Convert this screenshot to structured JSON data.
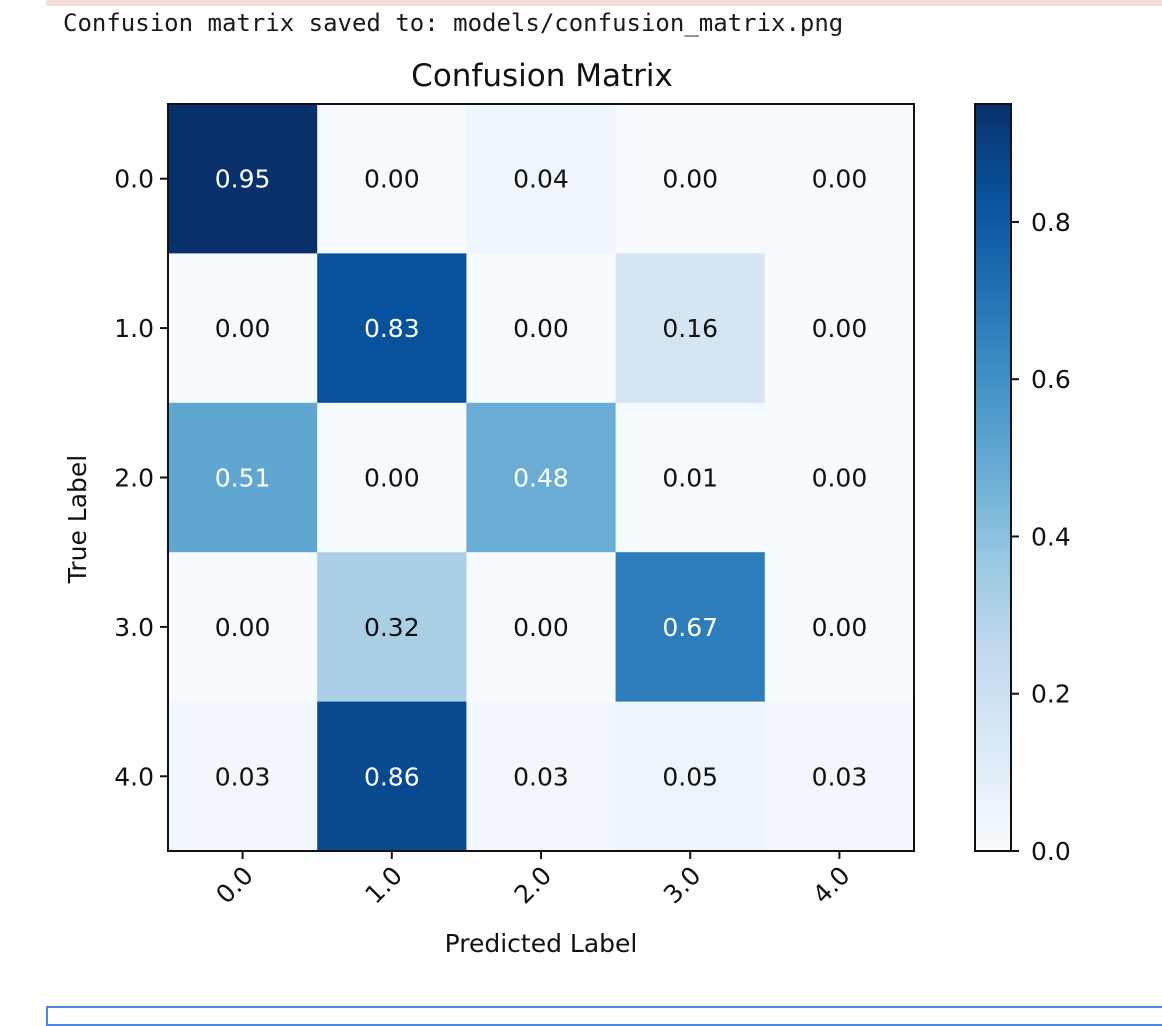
{
  "output": {
    "text": "Confusion matrix saved to: models/confusion_matrix.png"
  },
  "chart_data": {
    "type": "heatmap",
    "title": "Confusion Matrix",
    "xlabel": "Predicted Label",
    "ylabel": "True Label",
    "x_categories": [
      "0.0",
      "1.0",
      "2.0",
      "3.0",
      "4.0"
    ],
    "y_categories": [
      "0.0",
      "1.0",
      "2.0",
      "3.0",
      "4.0"
    ],
    "values": [
      [
        0.95,
        0.0,
        0.04,
        0.0,
        0.0
      ],
      [
        0.0,
        0.83,
        0.0,
        0.16,
        0.0
      ],
      [
        0.51,
        0.0,
        0.48,
        0.01,
        0.0
      ],
      [
        0.0,
        0.32,
        0.0,
        0.67,
        0.0
      ],
      [
        0.03,
        0.86,
        0.03,
        0.05,
        0.03
      ]
    ],
    "cell_labels": [
      [
        "0.95",
        "0.00",
        "0.04",
        "0.00",
        "0.00"
      ],
      [
        "0.00",
        "0.83",
        "0.00",
        "0.16",
        "0.00"
      ],
      [
        "0.51",
        "0.00",
        "0.48",
        "0.01",
        "0.00"
      ],
      [
        "0.00",
        "0.32",
        "0.00",
        "0.67",
        "0.00"
      ],
      [
        "0.03",
        "0.86",
        "0.03",
        "0.05",
        "0.03"
      ]
    ],
    "colormap": "Blues",
    "colorbar": {
      "range": [
        0,
        0.95
      ],
      "ticks": [
        0.0,
        0.2,
        0.4,
        0.6,
        0.8
      ],
      "tick_labels": [
        "0.0",
        "0.2",
        "0.4",
        "0.6",
        "0.8"
      ]
    },
    "x_tick_rotation": 45,
    "grid": false
  }
}
